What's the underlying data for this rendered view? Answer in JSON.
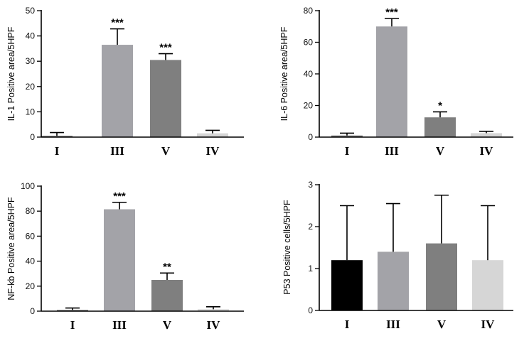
{
  "chart_data": [
    {
      "type": "bar",
      "ylabel": "IL-1 Positive area/5HPF",
      "ylim": [
        0,
        50
      ],
      "yticks": [
        "0",
        "10",
        "20",
        "30",
        "40",
        "50"
      ],
      "categories": [
        "I",
        "III",
        "V",
        "IV"
      ],
      "values": [
        0.5,
        36.5,
        30.5,
        1.5
      ],
      "errors": [
        1.3,
        6.3,
        2.5,
        1.2
      ],
      "significance": [
        "",
        "***",
        "***",
        ""
      ],
      "colors": [
        "#6f6f6f",
        "#a3a3a8",
        "#7f7f7f",
        "#d6d6d6"
      ]
    },
    {
      "type": "bar",
      "ylabel": "IL-6 Positive area/5HPF",
      "ylim": [
        0,
        80
      ],
      "yticks": [
        "0",
        "20",
        "40",
        "60",
        "80"
      ],
      "categories": [
        "I",
        "III",
        "V",
        "IV"
      ],
      "values": [
        1,
        70,
        12.5,
        2.5
      ],
      "errors": [
        1.5,
        5,
        3.5,
        1.2
      ],
      "significance": [
        "",
        "***",
        "*",
        ""
      ],
      "colors": [
        "#6f6f6f",
        "#a3a3a8",
        "#7f7f7f",
        "#d6d6d6"
      ]
    },
    {
      "type": "bar",
      "ylabel": "NF-kb Positive area/5HPF",
      "ylim": [
        0,
        100
      ],
      "yticks": [
        "0",
        "20",
        "40",
        "60",
        "80",
        "100"
      ],
      "categories": [
        "I",
        "III",
        "V",
        "IV"
      ],
      "values": [
        1,
        81.5,
        25,
        1.5
      ],
      "errors": [
        1.5,
        5.5,
        5.5,
        2
      ],
      "significance": [
        "",
        "***",
        "**",
        ""
      ],
      "colors": [
        "#6f6f6f",
        "#a3a3a8",
        "#7f7f7f",
        "#d6d6d6"
      ]
    },
    {
      "type": "bar",
      "ylabel": "P53 Positive cells/5HPF",
      "ylim": [
        0,
        3
      ],
      "yticks": [
        "0",
        "1",
        "2",
        "3"
      ],
      "categories": [
        "I",
        "III",
        "V",
        "IV"
      ],
      "values": [
        1.2,
        1.4,
        1.6,
        1.2
      ],
      "errors": [
        1.3,
        1.15,
        1.15,
        1.3
      ],
      "significance": [
        "",
        "",
        "",
        ""
      ],
      "colors": [
        "#000000",
        "#a3a3a8",
        "#7f7f7f",
        "#d6d6d6"
      ]
    }
  ]
}
